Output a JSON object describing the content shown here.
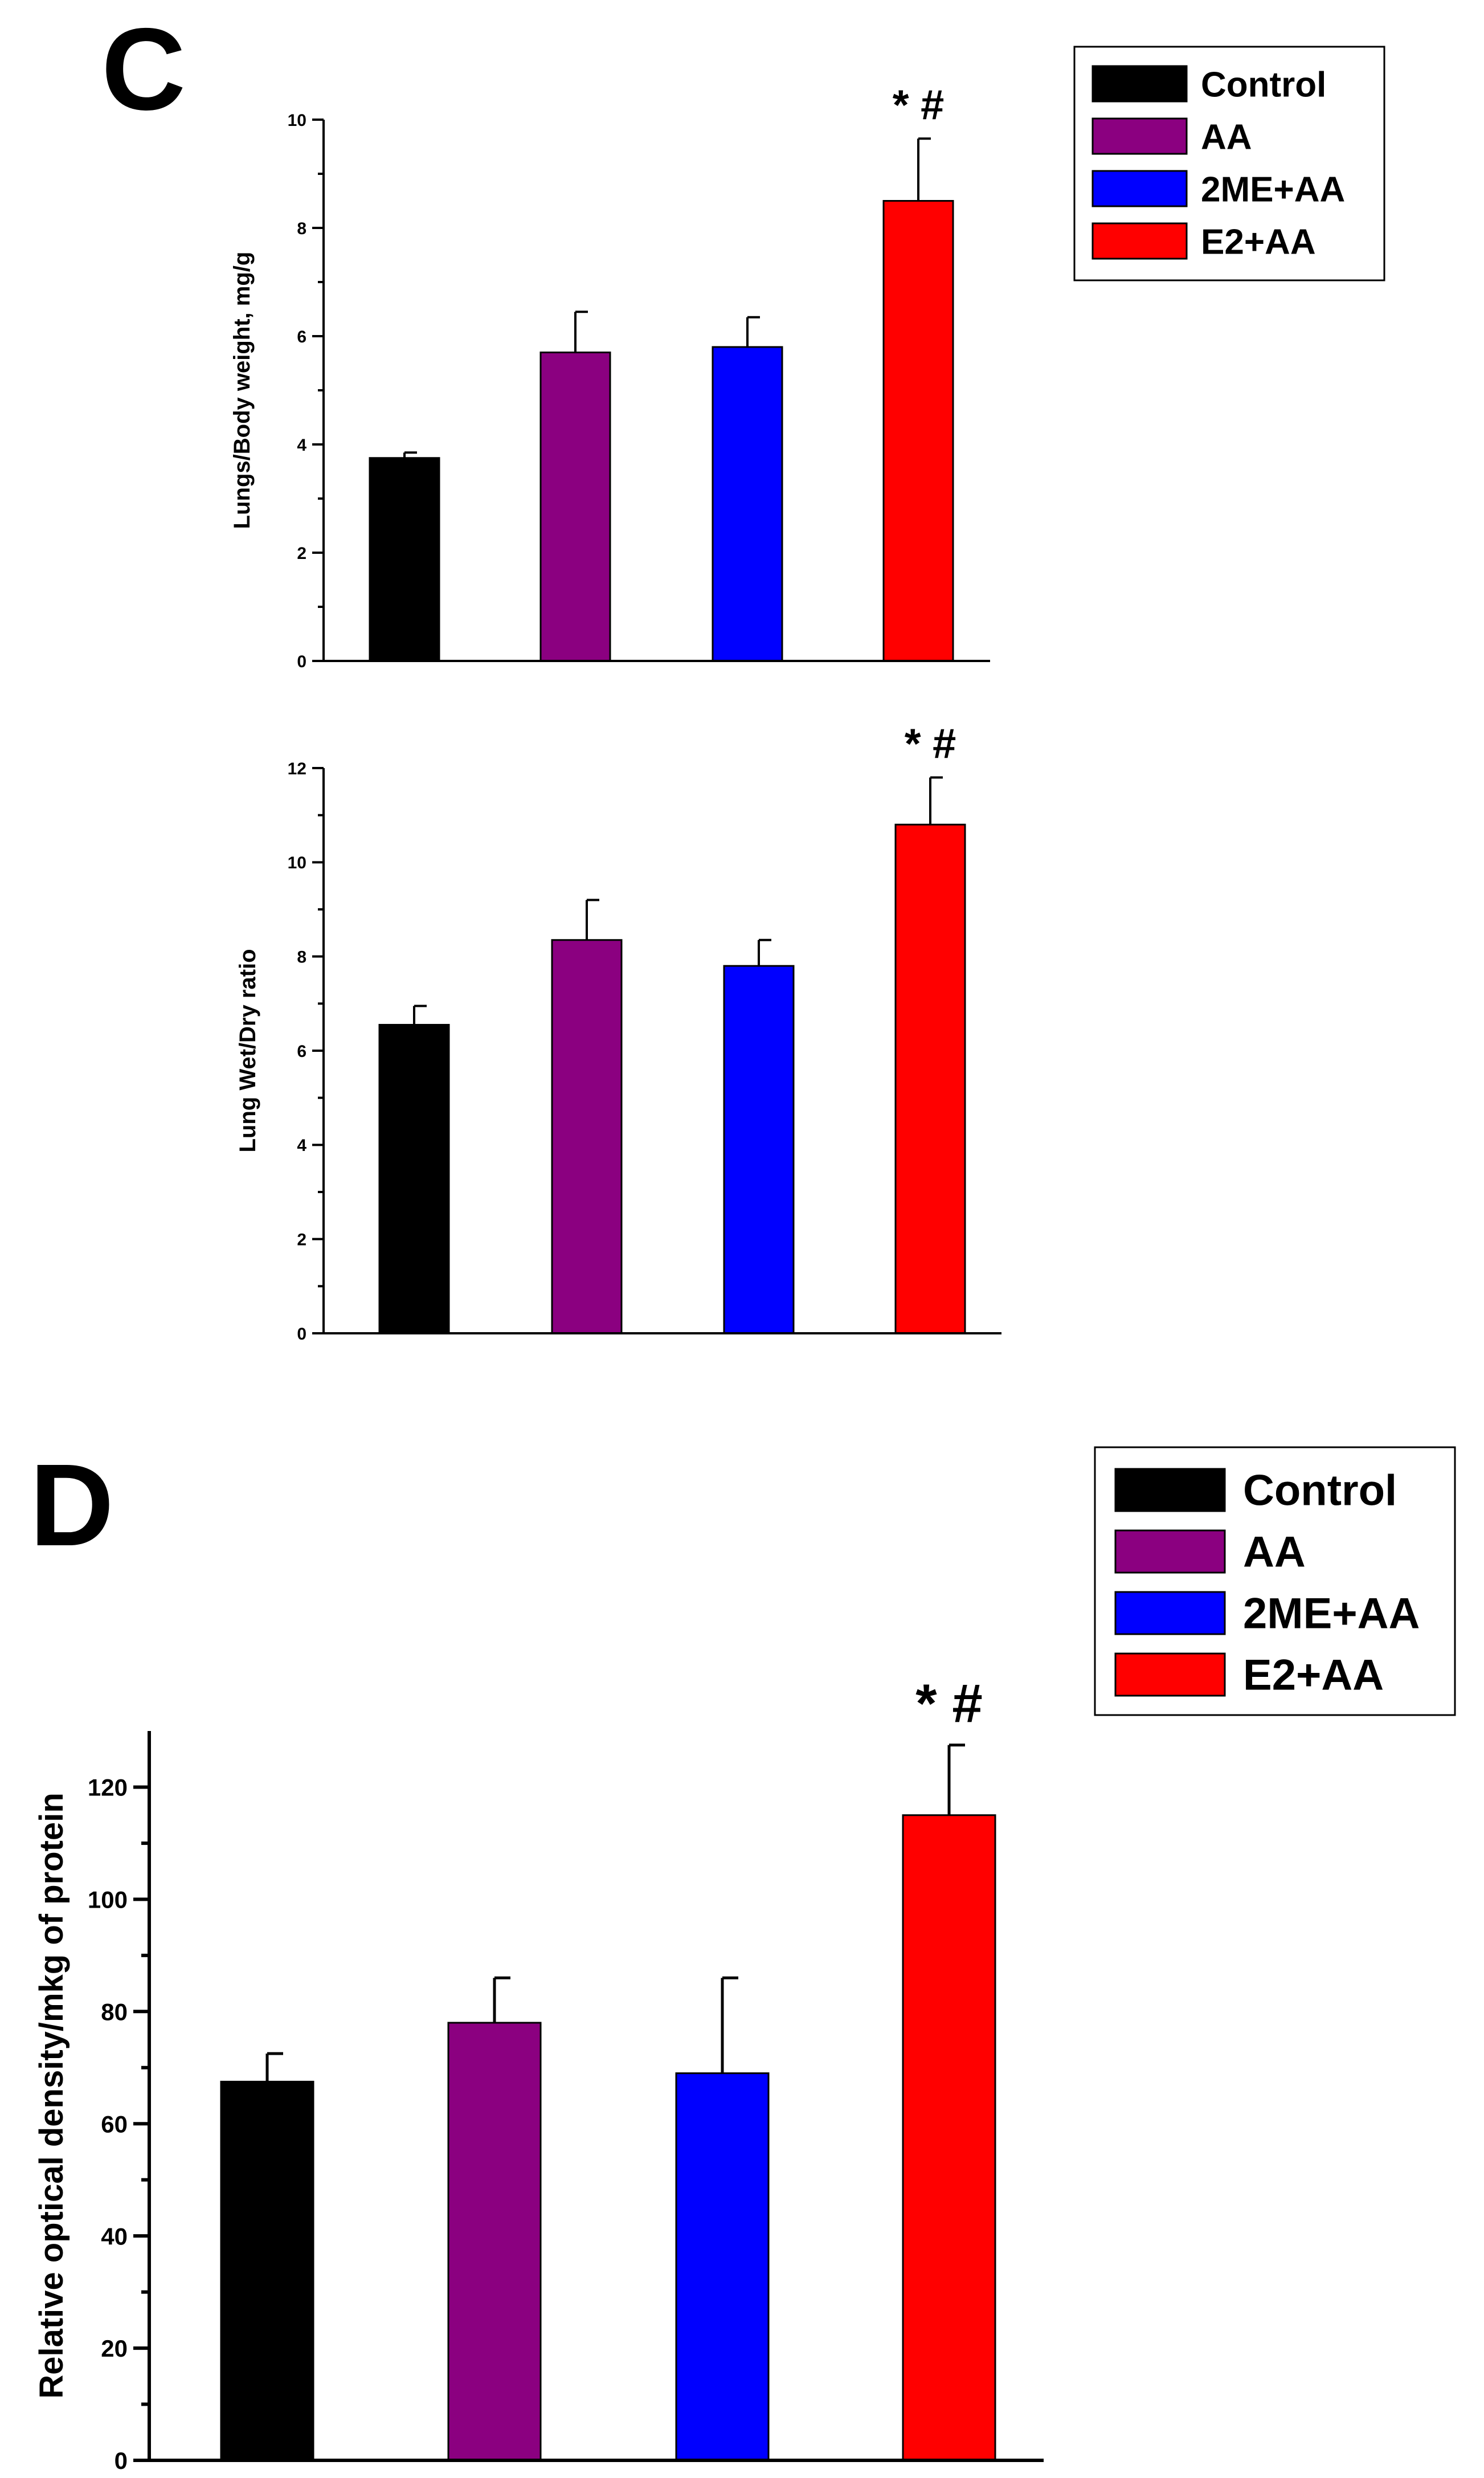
{
  "panel_c_label": "C",
  "panel_d_label": "D",
  "legend_labels": [
    "Control",
    "AA",
    "2ME+AA",
    "E2+AA"
  ],
  "colors": {
    "Control": "#000000",
    "AA": "#8b0080",
    "2ME+AA": "#0000ff",
    "E2+AA": "#ff0000"
  },
  "chart_data": [
    {
      "type": "bar",
      "panel": "C",
      "title": "",
      "categories": [
        "Control",
        "AA",
        "2ME+AA",
        "E2+AA"
      ],
      "values": [
        3.75,
        5.7,
        5.8,
        8.5
      ],
      "errors": [
        0.1,
        0.75,
        0.55,
        1.15
      ],
      "ylabel": "Lungs/Body weight, mg/g",
      "xlabel": "",
      "ylim": [
        0,
        10
      ],
      "yticks": [
        0,
        2,
        4,
        6,
        8,
        10
      ],
      "annotation": "*#",
      "annotation_category": "E2+AA"
    },
    {
      "type": "bar",
      "panel": "C",
      "title": "",
      "categories": [
        "Control",
        "AA",
        "2ME+AA",
        "E2+AA"
      ],
      "values": [
        6.55,
        8.35,
        7.8,
        10.8
      ],
      "errors": [
        0.4,
        0.85,
        0.55,
        1.0
      ],
      "ylabel": "Lung Wet/Dry ratio",
      "xlabel": "",
      "ylim": [
        0,
        12
      ],
      "yticks": [
        0,
        2,
        4,
        6,
        8,
        10,
        12
      ],
      "annotation": "*#",
      "annotation_category": "E2+AA"
    },
    {
      "type": "bar",
      "panel": "D",
      "title": "",
      "categories": [
        "Control",
        "AA",
        "2ME+AA",
        "E2+AA"
      ],
      "values": [
        67.5,
        78,
        69,
        115
      ],
      "errors": [
        5,
        8,
        17,
        12.5
      ],
      "ylabel": "Relative optical density/mkg of protein",
      "xlabel": "",
      "ylim": [
        0,
        130
      ],
      "yticks": [
        0,
        20,
        40,
        60,
        80,
        100,
        120
      ],
      "annotation": "*#",
      "annotation_category": "E2+AA"
    }
  ]
}
